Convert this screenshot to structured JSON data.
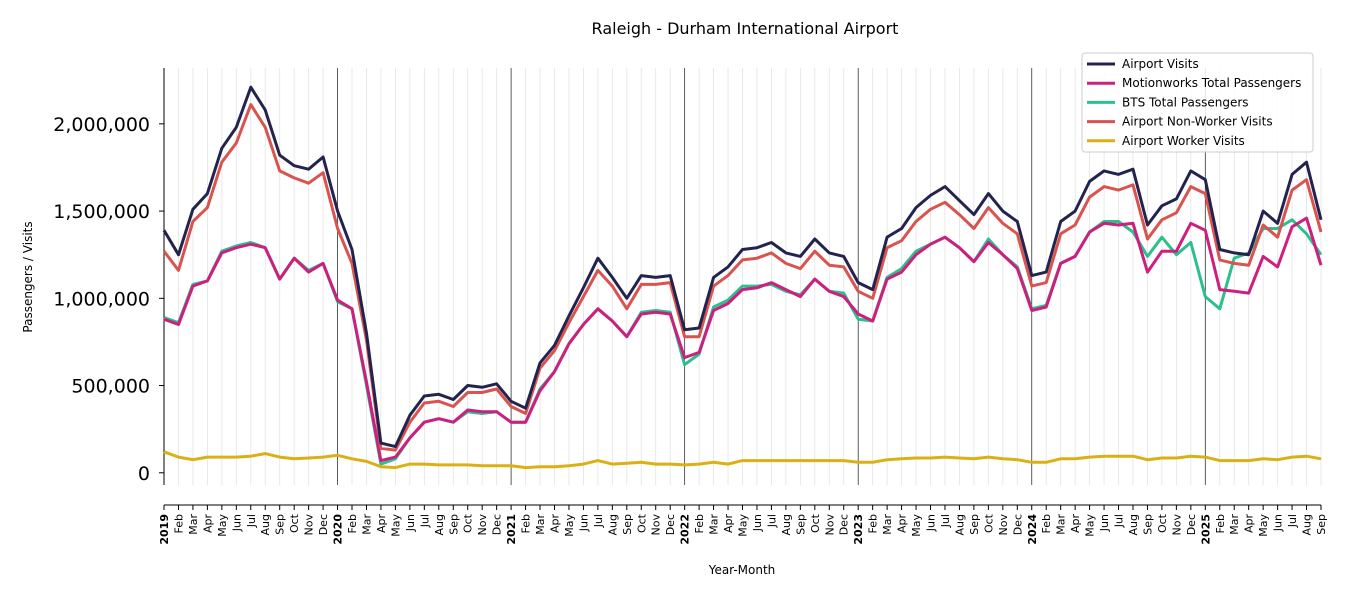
{
  "colors": {
    "airport_visits": "#23234f",
    "motionworks": "#cc1f7f",
    "bts": "#2dbf8c",
    "non_worker": "#d9534f",
    "worker": "#dbb014"
  },
  "chart_data": {
    "type": "line",
    "title": "Raleigh - Durham International Airport",
    "xlabel": "Year-Month",
    "ylabel": "Passengers / Visits",
    "ylim": [
      -70000,
      2320000
    ],
    "yticks": [
      0,
      500000,
      1000000,
      1500000,
      2000000
    ],
    "ytick_labels": [
      "0",
      "500,000",
      "1,000,000",
      "1,500,000",
      "2,000,000"
    ],
    "grid": "vertical monthly gridlines, darker lines at year starts",
    "legend_position": "top-right",
    "x": [
      "2019",
      "Feb",
      "Mar",
      "Apr",
      "May",
      "Jun",
      "Jul",
      "Aug",
      "Sep",
      "Oct",
      "Nov",
      "Dec",
      "2020",
      "Feb",
      "Mar",
      "Apr",
      "May",
      "Jun",
      "Jul",
      "Aug",
      "Sep",
      "Oct",
      "Nov",
      "Dec",
      "2021",
      "Feb",
      "Mar",
      "Apr",
      "May",
      "Jun",
      "Jul",
      "Aug",
      "Sep",
      "Oct",
      "Nov",
      "Dec",
      "2022",
      "Feb",
      "Mar",
      "Apr",
      "May",
      "Jun",
      "Jul",
      "Aug",
      "Sep",
      "Oct",
      "Nov",
      "Dec",
      "2023",
      "Feb",
      "Mar",
      "Apr",
      "May",
      "Jun",
      "Jul",
      "Aug",
      "Sep",
      "Oct",
      "Nov",
      "Dec",
      "2024",
      "Feb",
      "Mar",
      "Apr",
      "May",
      "Jun",
      "Jul",
      "Aug",
      "Sep",
      "Oct",
      "Nov",
      "Dec",
      "2025",
      "Feb",
      "Mar",
      "Apr",
      "May",
      "Jun",
      "Jul",
      "Aug",
      "Sep"
    ],
    "series": [
      {
        "name": "Airport Visits",
        "color_key": "airport_visits",
        "values": [
          1390000,
          1250000,
          1510000,
          1600000,
          1860000,
          1980000,
          2210000,
          2080000,
          1820000,
          1760000,
          1740000,
          1810000,
          1500000,
          1280000,
          800000,
          170000,
          150000,
          330000,
          440000,
          450000,
          420000,
          500000,
          490000,
          510000,
          410000,
          370000,
          630000,
          730000,
          900000,
          1060000,
          1230000,
          1120000,
          1000000,
          1130000,
          1120000,
          1130000,
          820000,
          830000,
          1120000,
          1180000,
          1280000,
          1290000,
          1320000,
          1260000,
          1240000,
          1340000,
          1260000,
          1240000,
          1090000,
          1050000,
          1350000,
          1400000,
          1520000,
          1590000,
          1640000,
          1560000,
          1480000,
          1600000,
          1500000,
          1440000,
          1130000,
          1150000,
          1440000,
          1500000,
          1670000,
          1730000,
          1710000,
          1740000,
          1420000,
          1530000,
          1570000,
          1730000,
          1680000,
          1280000,
          1260000,
          1250000,
          1500000,
          1430000,
          1710000,
          1780000,
          1450000
        ]
      },
      {
        "name": "Motionworks Total Passengers",
        "color_key": "motionworks",
        "values": [
          880000,
          850000,
          1070000,
          1100000,
          1260000,
          1290000,
          1310000,
          1290000,
          1110000,
          1230000,
          1150000,
          1200000,
          990000,
          940000,
          520000,
          70000,
          90000,
          200000,
          290000,
          310000,
          290000,
          360000,
          350000,
          350000,
          290000,
          290000,
          470000,
          580000,
          740000,
          850000,
          940000,
          870000,
          780000,
          910000,
          920000,
          910000,
          660000,
          690000,
          930000,
          970000,
          1050000,
          1060000,
          1090000,
          1050000,
          1010000,
          1110000,
          1040000,
          1010000,
          910000,
          870000,
          1110000,
          1150000,
          1250000,
          1310000,
          1350000,
          1290000,
          1210000,
          1320000,
          1250000,
          1170000,
          930000,
          950000,
          1200000,
          1240000,
          1380000,
          1430000,
          1420000,
          1430000,
          1150000,
          1270000,
          1270000,
          1430000,
          1390000,
          1050000,
          1040000,
          1030000,
          1240000,
          1180000,
          1410000,
          1460000,
          1190000
        ]
      },
      {
        "name": "BTS Total Passengers",
        "color_key": "bts",
        "values": [
          890000,
          860000,
          1080000,
          1100000,
          1270000,
          1300000,
          1320000,
          1290000,
          1110000,
          1230000,
          1160000,
          1200000,
          980000,
          940000,
          500000,
          50000,
          80000,
          200000,
          290000,
          310000,
          290000,
          350000,
          340000,
          350000,
          290000,
          290000,
          480000,
          580000,
          740000,
          850000,
          940000,
          870000,
          780000,
          920000,
          930000,
          920000,
          620000,
          680000,
          950000,
          990000,
          1070000,
          1070000,
          1080000,
          1040000,
          1020000,
          1110000,
          1040000,
          1030000,
          880000,
          870000,
          1120000,
          1170000,
          1270000,
          1310000,
          1350000,
          1290000,
          1210000,
          1340000,
          1250000,
          1180000,
          940000,
          960000,
          1200000,
          1240000,
          1380000,
          1440000,
          1440000,
          1380000,
          1240000,
          1350000,
          1250000,
          1320000,
          1010000,
          940000,
          1230000,
          1260000,
          1400000,
          1400000,
          1450000,
          1370000,
          1250000
        ]
      },
      {
        "name": "Airport Non-Worker Visits",
        "color_key": "non_worker",
        "values": [
          1270000,
          1160000,
          1440000,
          1520000,
          1780000,
          1890000,
          2110000,
          1980000,
          1730000,
          1690000,
          1660000,
          1720000,
          1400000,
          1200000,
          760000,
          140000,
          130000,
          290000,
          400000,
          410000,
          380000,
          460000,
          460000,
          480000,
          380000,
          340000,
          600000,
          700000,
          860000,
          1010000,
          1160000,
          1070000,
          940000,
          1080000,
          1080000,
          1090000,
          780000,
          780000,
          1070000,
          1130000,
          1220000,
          1230000,
          1260000,
          1200000,
          1170000,
          1270000,
          1190000,
          1180000,
          1040000,
          1000000,
          1290000,
          1330000,
          1440000,
          1510000,
          1550000,
          1480000,
          1400000,
          1520000,
          1430000,
          1370000,
          1070000,
          1090000,
          1370000,
          1420000,
          1580000,
          1640000,
          1620000,
          1650000,
          1340000,
          1450000,
          1490000,
          1640000,
          1600000,
          1220000,
          1200000,
          1190000,
          1420000,
          1350000,
          1620000,
          1680000,
          1380000
        ]
      },
      {
        "name": "Airport Worker Visits",
        "color_key": "worker",
        "values": [
          120000,
          90000,
          75000,
          90000,
          90000,
          90000,
          95000,
          110000,
          90000,
          80000,
          85000,
          90000,
          100000,
          80000,
          65000,
          35000,
          30000,
          50000,
          50000,
          45000,
          45000,
          45000,
          40000,
          40000,
          40000,
          30000,
          35000,
          35000,
          40000,
          50000,
          70000,
          50000,
          55000,
          60000,
          50000,
          50000,
          45000,
          50000,
          60000,
          50000,
          70000,
          70000,
          70000,
          70000,
          70000,
          70000,
          70000,
          70000,
          60000,
          60000,
          75000,
          80000,
          85000,
          85000,
          90000,
          85000,
          80000,
          90000,
          80000,
          75000,
          60000,
          60000,
          80000,
          80000,
          90000,
          95000,
          95000,
          95000,
          75000,
          85000,
          85000,
          95000,
          90000,
          70000,
          70000,
          70000,
          80000,
          75000,
          90000,
          95000,
          80000
        ]
      }
    ]
  }
}
